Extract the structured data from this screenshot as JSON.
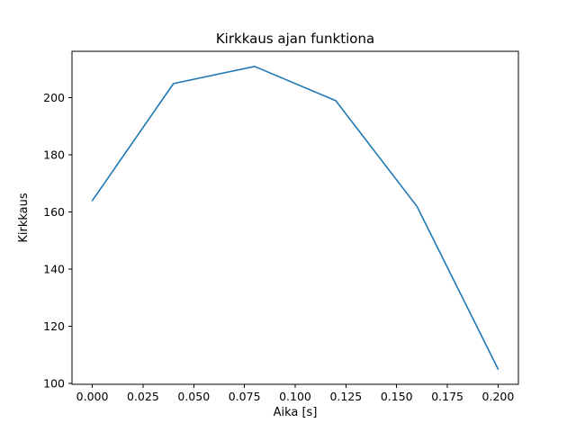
{
  "chart_data": {
    "type": "line",
    "title": "Kirkkaus ajan funktiona",
    "xlabel": "Aika [s]",
    "ylabel": "Kirkkaus",
    "x": [
      0.0,
      0.04,
      0.08,
      0.12,
      0.16,
      0.2
    ],
    "y": [
      164,
      205,
      211,
      199,
      162,
      105
    ],
    "xticks": [
      0.0,
      0.025,
      0.05,
      0.075,
      0.1,
      0.125,
      0.15,
      0.175,
      0.2
    ],
    "xtick_labels": [
      "0.000",
      "0.025",
      "0.050",
      "0.075",
      "0.100",
      "0.125",
      "0.150",
      "0.175",
      "0.200"
    ],
    "yticks": [
      100,
      120,
      140,
      160,
      180,
      200
    ],
    "ytick_labels": [
      "100",
      "120",
      "140",
      "160",
      "180",
      "200"
    ],
    "xlim": [
      -0.01,
      0.21
    ],
    "ylim": [
      99.7,
      216.3
    ],
    "line_color": "#1f77b4",
    "axis_color": "#000000",
    "background_color": "#ffffff",
    "grid": false,
    "legend": null
  }
}
